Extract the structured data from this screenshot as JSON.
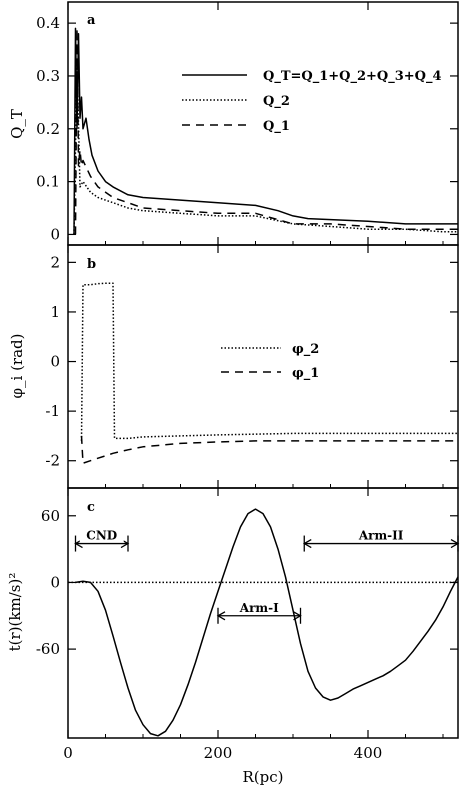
{
  "chart_data": [
    {
      "type": "line",
      "panel_label": "a",
      "ylabel": "Q_T",
      "xlabel": "",
      "xlim": [
        0,
        520
      ],
      "ylim": [
        -0.02,
        0.44
      ],
      "yticks": [
        0,
        0.1,
        0.2,
        0.3,
        0.4
      ],
      "ytick_labels": [
        "0",
        "0.1",
        "0.2",
        "0.3",
        "0.4"
      ],
      "xticks": [
        0,
        200,
        400
      ],
      "legend_position": "top-right",
      "series": [
        {
          "name": "Q_T=Q_1+Q_2+Q_3+Q_4",
          "style": "solid",
          "x": [
            8,
            10,
            12,
            14,
            16,
            18,
            20,
            24,
            28,
            32,
            40,
            50,
            60,
            80,
            100,
            150,
            200,
            250,
            280,
            300,
            320,
            400,
            450,
            500,
            520
          ],
          "y": [
            0,
            0.39,
            0.2,
            0.38,
            0.22,
            0.26,
            0.2,
            0.22,
            0.18,
            0.15,
            0.12,
            0.1,
            0.09,
            0.075,
            0.07,
            0.065,
            0.06,
            0.055,
            0.045,
            0.035,
            0.03,
            0.025,
            0.02,
            0.02,
            0.02
          ]
        },
        {
          "name": "Q_2",
          "style": "dotted",
          "x": [
            8,
            12,
            16,
            20,
            30,
            40,
            60,
            80,
            100,
            150,
            200,
            250,
            300,
            350,
            400,
            450,
            500,
            520
          ],
          "y": [
            0,
            0.33,
            0.09,
            0.1,
            0.08,
            0.07,
            0.06,
            0.05,
            0.045,
            0.04,
            0.035,
            0.035,
            0.02,
            0.015,
            0.01,
            0.01,
            0.005,
            0.005
          ]
        },
        {
          "name": "Q_1",
          "style": "dashed",
          "x": [
            10,
            12,
            14,
            16,
            18,
            20,
            30,
            40,
            50,
            60,
            80,
            100,
            150,
            200,
            250,
            300,
            350,
            400,
            450,
            500,
            520
          ],
          "y": [
            0,
            0.39,
            0.13,
            0.16,
            0.13,
            0.14,
            0.11,
            0.09,
            0.08,
            0.07,
            0.06,
            0.05,
            0.045,
            0.04,
            0.04,
            0.02,
            0.02,
            0.015,
            0.01,
            0.01,
            0.01
          ]
        }
      ]
    },
    {
      "type": "line",
      "panel_label": "b",
      "ylabel": "φ_i (rad)",
      "xlabel": "",
      "xlim": [
        0,
        520
      ],
      "ylim": [
        -2.55,
        2.35
      ],
      "yticks": [
        -2,
        -1,
        0,
        1,
        2
      ],
      "ytick_labels": [
        "-2",
        "-1",
        "0",
        "1",
        "2"
      ],
      "xticks": [
        0,
        200,
        400
      ],
      "legend_position": "center-right",
      "series": [
        {
          "name": "φ_2",
          "style": "dotted",
          "x": [
            18,
            20,
            30,
            40,
            50,
            60,
            62,
            65,
            80,
            100,
            150,
            200,
            300,
            400,
            520
          ],
          "y": [
            -1.6,
            1.55,
            1.55,
            1.57,
            1.58,
            1.58,
            -1.55,
            -1.55,
            -1.55,
            -1.52,
            -1.5,
            -1.48,
            -1.45,
            -1.45,
            -1.45
          ]
        },
        {
          "name": "φ_1",
          "style": "dashed",
          "x": [
            18,
            20,
            30,
            40,
            50,
            60,
            80,
            100,
            150,
            200,
            250,
            300,
            350,
            400,
            450,
            520
          ],
          "y": [
            -1.5,
            -2.05,
            -2.0,
            -1.95,
            -1.9,
            -1.85,
            -1.78,
            -1.72,
            -1.65,
            -1.62,
            -1.6,
            -1.6,
            -1.6,
            -1.6,
            -1.6,
            -1.6
          ]
        }
      ]
    },
    {
      "type": "line",
      "panel_label": "c",
      "ylabel": "t(r)(km/s)²",
      "xlabel": "R(pc)",
      "xlim": [
        0,
        520
      ],
      "ylim": [
        -140,
        85
      ],
      "yticks": [
        -60,
        0,
        60
      ],
      "ytick_labels": [
        "-60",
        "0",
        "60"
      ],
      "xticks": [
        0,
        200,
        400
      ],
      "xtick_labels": [
        "0",
        "200",
        "400"
      ],
      "series": [
        {
          "name": "t(r)",
          "style": "solid",
          "x": [
            10,
            20,
            30,
            40,
            50,
            60,
            70,
            80,
            90,
            100,
            110,
            120,
            130,
            140,
            150,
            160,
            170,
            180,
            190,
            200,
            210,
            220,
            230,
            240,
            250,
            260,
            270,
            280,
            290,
            300,
            310,
            320,
            330,
            340,
            350,
            360,
            370,
            380,
            390,
            400,
            410,
            420,
            430,
            440,
            450,
            460,
            470,
            480,
            490,
            500,
            510,
            520
          ],
          "y": [
            0,
            1,
            0,
            -8,
            -25,
            -48,
            -72,
            -95,
            -115,
            -128,
            -136,
            -138,
            -134,
            -124,
            -110,
            -92,
            -72,
            -50,
            -28,
            -8,
            12,
            32,
            50,
            62,
            66,
            62,
            50,
            30,
            5,
            -25,
            -55,
            -80,
            -95,
            -103,
            -106,
            -104,
            -100,
            -96,
            -93,
            -90,
            -87,
            -84,
            -80,
            -75,
            -70,
            -62,
            -53,
            -44,
            -34,
            -22,
            -8,
            5
          ]
        },
        {
          "name": "zero",
          "style": "dotted",
          "x": [
            0,
            520
          ],
          "y": [
            0,
            0
          ]
        }
      ],
      "annotations": [
        {
          "text": "CND",
          "x_start": 10,
          "x_end": 80,
          "y": 35
        },
        {
          "text": "Arm-I",
          "x_start": 200,
          "x_end": 310,
          "y": -30
        },
        {
          "text": "Arm-II",
          "x_start": 315,
          "x_end": 520,
          "y": 35
        }
      ]
    }
  ]
}
